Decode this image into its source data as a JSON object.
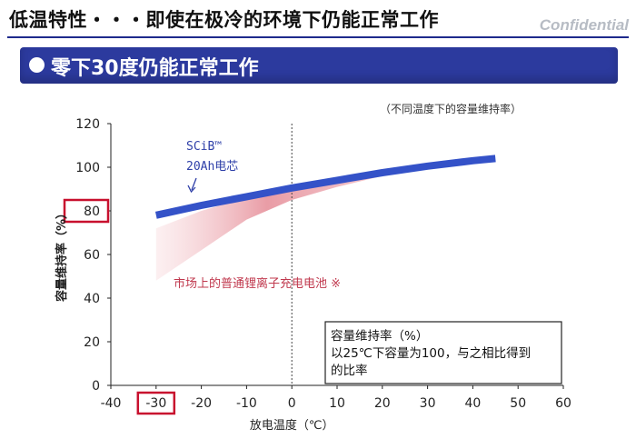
{
  "header": {
    "title": "低温特性・・・即使在极冷的环境下仍能正常工作",
    "confidential": "Confidential"
  },
  "section": {
    "title": "零下30度仍能正常工作"
  },
  "chart_data": {
    "type": "line",
    "note": "（不同温度下的容量维持率）",
    "xlabel": "放电温度（℃）",
    "ylabel": "容量维持率（%）",
    "xlim": [
      -40,
      60
    ],
    "ylim": [
      0,
      120
    ],
    "x_ticks": [
      -40,
      -30,
      -20,
      -10,
      0,
      10,
      20,
      30,
      40,
      50,
      60
    ],
    "y_ticks": [
      0,
      20,
      40,
      60,
      80,
      100,
      120
    ],
    "highlight": {
      "x_tick": -30,
      "y_tick": 80,
      "color": "#c8102e"
    },
    "series": [
      {
        "name": "SCiB™ 20Ah电芯",
        "name_lines": [
          "SCiB™",
          "20Ah电芯"
        ],
        "color": "#3452c8",
        "x": [
          -30,
          -20,
          -10,
          0,
          10,
          20,
          30,
          40,
          45
        ],
        "y": [
          78,
          82.5,
          86.5,
          90.5,
          94,
          97.5,
          100.5,
          103,
          104
        ]
      },
      {
        "name": "市场上的普通锂离子充电电池 ※",
        "color": "#e8a0a8",
        "band_upper": {
          "x": [
            -30,
            -20,
            -10,
            0,
            10,
            20,
            30,
            40
          ],
          "y": [
            72,
            80,
            86,
            90.5,
            94,
            97.5,
            100.5,
            103
          ]
        },
        "band_lower": {
          "x": [
            -30,
            -20,
            -10,
            0,
            10,
            20,
            30,
            40
          ],
          "y": [
            48,
            62,
            76,
            85,
            91,
            96,
            99.5,
            102.5
          ]
        }
      }
    ],
    "annotation_box": {
      "lines": [
        "容量维持率（%）",
        "以25℃下容量为100，与之相比得到",
        "的比率"
      ]
    },
    "grid": {
      "x_zero_dashed": true
    }
  }
}
